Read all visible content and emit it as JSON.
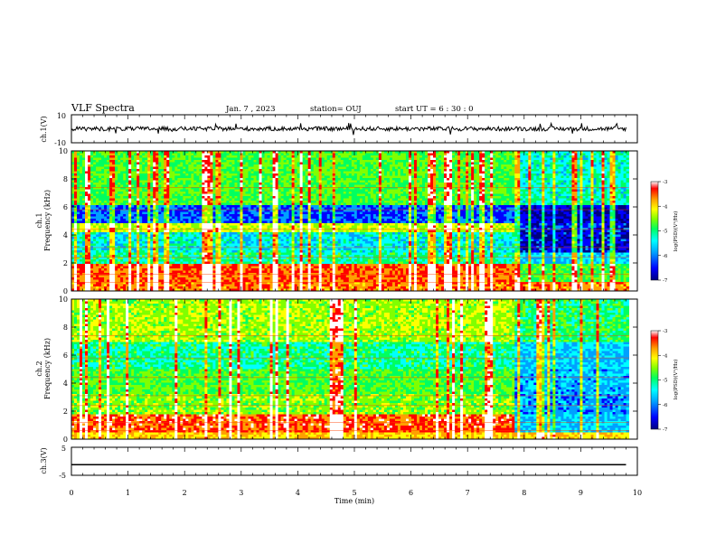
{
  "header": {
    "title": "VLF Spectra",
    "date": "Jan. 7 , 2023",
    "station": "station= OUJ",
    "start": "start UT =  6 : 30 : 0"
  },
  "colors": {
    "colormap": [
      "#000080",
      "#0000ff",
      "#00a0ff",
      "#00ffff",
      "#00ff60",
      "#80ff00",
      "#ffff00",
      "#ffa000",
      "#ff0000",
      "#ffffff"
    ],
    "trace": "#000000"
  },
  "chart_data": [
    {
      "type": "line",
      "panel": "ch1-waveform",
      "ylabel": "ch.1(V)",
      "ylim": [
        -10,
        10
      ],
      "yticks": [
        "10",
        "-10"
      ],
      "xlim": [
        0,
        10
      ],
      "description_values": {
        "mean": 0,
        "noise_amplitude": 1.5
      }
    },
    {
      "type": "heatmap",
      "panel": "ch1-spectrogram",
      "ylabel_top": "ch.1",
      "ylabel": "Frequency  (kHz)",
      "ylim": [
        0,
        10
      ],
      "yticks": [
        "0",
        "2",
        "4",
        "6",
        "8",
        "10"
      ],
      "xlim": [
        0,
        9.85
      ],
      "event_time_min": 7.85,
      "colorbar": {
        "label": "log(PSD)(V²/Hz)",
        "ticks": [
          "-3",
          "-4",
          "-5",
          "-6",
          "-7"
        ],
        "range": [
          -7,
          -3
        ]
      }
    },
    {
      "type": "heatmap",
      "panel": "ch2-spectrogram",
      "ylabel_top": "ch.2",
      "ylabel": "Frequency  (kHz)",
      "ylim": [
        0,
        10
      ],
      "yticks": [
        "0",
        "2",
        "4",
        "6",
        "8",
        "10"
      ],
      "xlim": [
        0,
        9.85
      ],
      "event_time_min": 7.85,
      "colorbar": {
        "label": "log(PSD)(V²/Hz)",
        "ticks": [
          "-3",
          "-4",
          "-5",
          "-6",
          "-7"
        ],
        "range": [
          -7,
          -3
        ]
      }
    },
    {
      "type": "line",
      "panel": "ch3-waveform",
      "ylabel": "ch.3(V)",
      "ylim": [
        -5,
        5
      ],
      "yticks": [
        "5",
        "-5"
      ],
      "xlim": [
        0,
        10
      ],
      "y": -1.2
    }
  ],
  "xaxis": {
    "label": "Time  (min)",
    "ticks": [
      "0",
      "1",
      "2",
      "3",
      "4",
      "5",
      "6",
      "7",
      "8",
      "9",
      "10"
    ],
    "range": [
      0,
      10
    ]
  }
}
